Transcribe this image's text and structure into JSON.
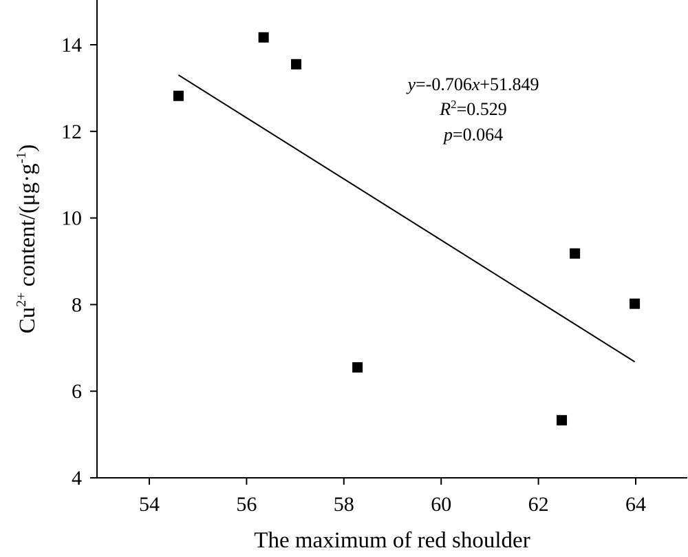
{
  "chart_data": {
    "type": "scatter",
    "title": "",
    "xlabel": "The maximum of red shoulder",
    "ylabel_parts": {
      "base": "Cu",
      "sup": "2+",
      "mid": " content/(μg·g",
      "sup2": "-1",
      "end": ")"
    },
    "xlim": [
      53,
      65
    ],
    "ylim": [
      4,
      15
    ],
    "xticks": [
      54,
      56,
      58,
      60,
      62,
      64
    ],
    "yticks": [
      4,
      6,
      8,
      10,
      12,
      14
    ],
    "grid": false,
    "points": [
      {
        "x": 54.6,
        "y": 12.82
      },
      {
        "x": 56.35,
        "y": 14.17
      },
      {
        "x": 57.02,
        "y": 13.55
      },
      {
        "x": 58.28,
        "y": 6.55
      },
      {
        "x": 62.48,
        "y": 5.33
      },
      {
        "x": 62.75,
        "y": 9.18
      },
      {
        "x": 63.98,
        "y": 8.02
      }
    ],
    "trendline": {
      "slope": -0.706,
      "intercept": 51.849,
      "x_range": [
        54.6,
        63.98
      ]
    },
    "annotation": {
      "line1_y": "y",
      "line1_rest": "=-0.706",
      "line1_x": "x",
      "line1_end": "+51.849",
      "line2_r": "R",
      "line2_sup": "2",
      "line2_end": "=0.529",
      "line3_p": "p",
      "line3_end": "=0.064"
    }
  }
}
